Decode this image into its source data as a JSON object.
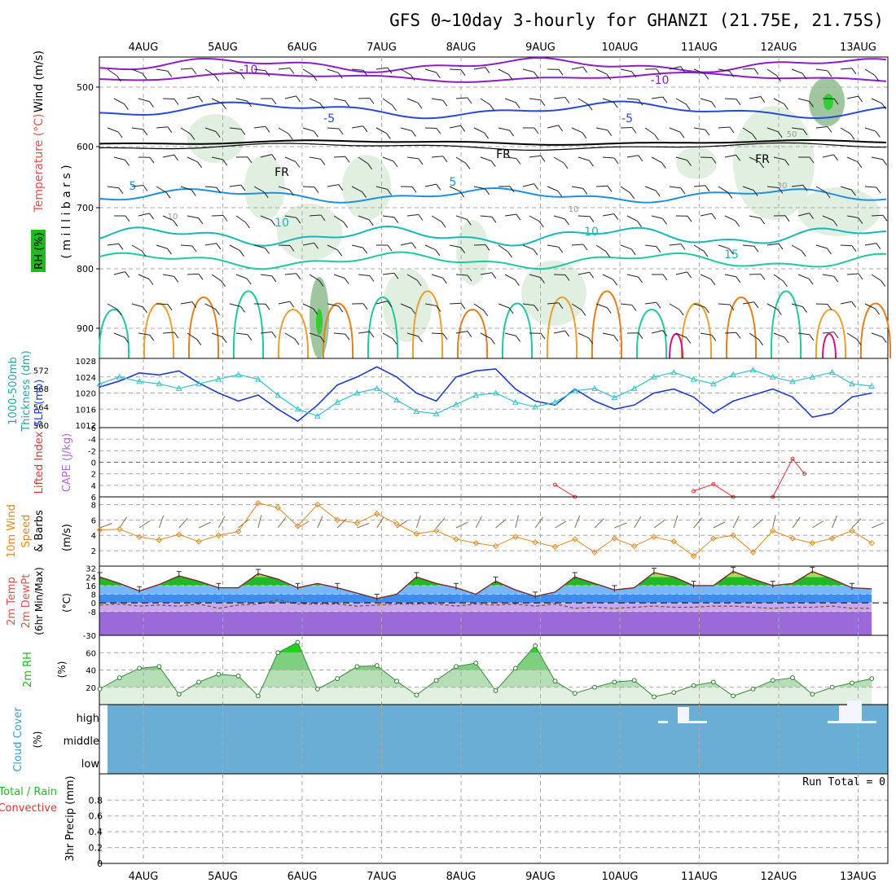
{
  "title": "GFS 0~10day 3-hourly for GHANZI (21.75E, 21.75S)",
  "dates": [
    "4AUG",
    "5AUG",
    "6AUG",
    "7AUG",
    "8AUG",
    "9AUG",
    "10AUG",
    "11AUG",
    "12AUG",
    "13AUG"
  ],
  "colors": {
    "frame": "#000000",
    "grid": "#a8a8a8",
    "slp": "#1e3cc8",
    "thickness": "#33c2c8",
    "cape": "#b866d8",
    "lifted": "#e03030",
    "wind10m": "#e08a1e",
    "barbs": "#8a6a4a",
    "rh_green": "#22b822",
    "cloud_bg": "#6aaed6",
    "cloud_fill": "#f4f4ff",
    "temp_purple": "#8d52c8",
    "temp_hot": "#f0a030",
    "frz": "#000000"
  },
  "panel_upper": {
    "label_wind": "Wind (m/s)",
    "label_temp": "Temperature (°C)",
    "label_mb": "( m i l l i b a r s )",
    "label_rh": "RH (%)",
    "yticks": [
      "500",
      "600",
      "700",
      "800",
      "900"
    ],
    "contour_labels": [
      "-10",
      "-10",
      "-5",
      "-5",
      "5",
      "5",
      "10",
      "10",
      "15",
      "10",
      "10",
      "50",
      "30",
      "FR",
      "FR",
      "FR"
    ]
  },
  "panel_slp": {
    "label_left": "1000-500mb",
    "label_left2": "Thickness (dm)",
    "label_right": "SLP (mb)",
    "yticks_left": [
      "572",
      "568",
      "564",
      "560"
    ],
    "yticks_right": [
      "1028",
      "1024",
      "1020",
      "1016",
      "1012"
    ]
  },
  "panel_cape": {
    "label_left": "Lifted Index",
    "label_right": "CAPE (J/kg)",
    "yticks": [
      "-4",
      "-2",
      "0",
      "2",
      "4",
      "6"
    ],
    "yticks_top": "-6"
  },
  "panel_wind": {
    "label_1": "10m Wind",
    "label_2": "Speed",
    "label_3": "& Barbs",
    "label_units": "(m/s)",
    "yticks": [
      "8",
      "6",
      "4",
      "2"
    ]
  },
  "panel_temp": {
    "label_1": "2m Temp",
    "label_2": "2m DewPt",
    "label_3": "(6hr Min/Max)",
    "label_units": "(°C)",
    "yticks": [
      "32",
      "24",
      "16",
      "8",
      "0",
      "-8",
      "-30"
    ]
  },
  "panel_rh": {
    "label_1": "2m RH",
    "label_units": "(%)",
    "yticks": [
      "60",
      "40",
      "20"
    ]
  },
  "panel_cloud": {
    "label_1": "Cloud Cover",
    "label_units": "(%)",
    "levels": [
      "high",
      "middle",
      "low"
    ]
  },
  "panel_precip": {
    "label_1": "Total / Rain",
    "label_2": "Convective",
    "label_3": "3hr Precip (mm)",
    "yticks": [
      "0.8",
      "0.6",
      "0.4",
      "0.2",
      "0"
    ],
    "run_total": "Run Total = 0"
  },
  "chart_data": [
    {
      "type": "line",
      "title": "SLP (mb) and 1000-500mb Thickness (dm)",
      "x_unit": "days from 3AUG 12Z (3-hourly)",
      "series": [
        {
          "name": "SLP (mb)",
          "x": [
            0,
            0.25,
            0.5,
            0.75,
            1,
            1.25,
            1.5,
            1.75,
            2,
            2.25,
            2.5,
            2.75,
            3,
            3.25,
            3.5,
            3.75,
            4,
            4.25,
            4.5,
            4.75,
            5,
            5.25,
            5.5,
            5.75,
            6,
            6.25,
            6.5,
            6.75,
            7,
            7.25,
            7.5,
            7.75,
            8,
            8.25,
            8.5,
            8.75,
            9,
            9.25,
            9.5,
            9.75
          ],
          "values": [
            1021.5,
            1023,
            1025,
            1024.5,
            1025.5,
            1022.5,
            1020,
            1018,
            1019.5,
            1016,
            1013,
            1017,
            1022,
            1024,
            1026.5,
            1024,
            1020,
            1018,
            1024,
            1025.5,
            1026,
            1021,
            1018,
            1017,
            1021,
            1018,
            1016,
            1017,
            1020,
            1021,
            1019,
            1015,
            1018,
            1019.5,
            1021,
            1019,
            1014,
            1015,
            1019,
            1020
          ]
        },
        {
          "name": "1000-500mb Thickness (dm)",
          "x": [
            0,
            0.25,
            0.5,
            0.75,
            1,
            1.25,
            1.5,
            1.75,
            2,
            2.25,
            2.5,
            2.75,
            3,
            3.25,
            3.5,
            3.75,
            4,
            4.25,
            4.5,
            4.75,
            5,
            5.25,
            5.5,
            5.75,
            6,
            6.25,
            6.5,
            6.75,
            7,
            7.25,
            7.5,
            7.75,
            8,
            8.25,
            8.5,
            8.75,
            9,
            9.25,
            9.5,
            9.75
          ],
          "values": [
            569,
            570.5,
            569.5,
            569,
            568,
            569,
            570,
            571,
            570,
            566.5,
            563.5,
            562,
            565,
            567,
            568,
            565.5,
            563,
            562.5,
            564.5,
            566.5,
            567,
            565,
            564,
            565,
            567.5,
            568,
            566,
            568,
            570.5,
            571.5,
            570,
            569,
            571,
            572,
            570.5,
            569.5,
            570.5,
            571.5,
            569,
            568.5
          ]
        }
      ],
      "ylim_slp": [
        1010,
        1028
      ],
      "ylim_thickness": [
        560,
        574
      ]
    },
    {
      "type": "line",
      "title": "Lifted Index",
      "x": [
        5.75,
        6.0,
        7.5,
        7.75,
        8.0,
        8.5,
        8.75,
        8.9
      ],
      "values": [
        3.9,
        6,
        5,
        3.8,
        6,
        6,
        -0.6,
        2
      ],
      "ylim": [
        -6,
        6
      ]
    },
    {
      "type": "line",
      "title": "10m Wind Speed (m/s)",
      "x": [
        0,
        0.25,
        0.5,
        0.75,
        1,
        1.25,
        1.5,
        1.75,
        2,
        2.25,
        2.5,
        2.75,
        3,
        3.25,
        3.5,
        3.75,
        4,
        4.25,
        4.5,
        4.75,
        5,
        5.25,
        5.5,
        5.75,
        6,
        6.25,
        6.5,
        6.75,
        7,
        7.25,
        7.5,
        7.75,
        8,
        8.25,
        8.5,
        8.75,
        9,
        9.25,
        9.5,
        9.75
      ],
      "values": [
        4.7,
        4.8,
        3.8,
        3.4,
        4.1,
        3.2,
        4.0,
        4.5,
        8.2,
        7.6,
        5.2,
        8.0,
        6.0,
        5.6,
        6.8,
        5.5,
        4.2,
        4.6,
        3.5,
        3.0,
        2.6,
        3.8,
        3.1,
        2.5,
        3.5,
        1.8,
        3.6,
        2.6,
        3.8,
        3.2,
        1.3,
        3.6,
        4.0,
        1.8,
        4.6,
        3.6,
        3.0,
        3.6,
        4.6,
        3.0
      ],
      "ylim": [
        0,
        9
      ]
    },
    {
      "type": "area",
      "title": "2m Temp (°C)",
      "x": [
        0,
        0.25,
        0.5,
        0.75,
        1,
        1.25,
        1.5,
        1.75,
        2,
        2.25,
        2.5,
        2.75,
        3,
        3.25,
        3.5,
        3.75,
        4,
        4.25,
        4.5,
        4.75,
        5,
        5.25,
        5.5,
        5.75,
        6,
        6.25,
        6.5,
        6.75,
        7,
        7.25,
        7.5,
        7.75,
        8,
        8.25,
        8.5,
        8.75,
        9,
        9.25,
        9.5,
        9.75
      ],
      "values": [
        24,
        18,
        11,
        17,
        25,
        20,
        14,
        14,
        27,
        22,
        14,
        18,
        14,
        9,
        4,
        8,
        24,
        18,
        14,
        8,
        20,
        12,
        6,
        10,
        24,
        18,
        12,
        14,
        28,
        24,
        16,
        16,
        29,
        22,
        16,
        18,
        29,
        22,
        14,
        13
      ],
      "dewpoint": [
        -2,
        -1,
        -3,
        -2,
        -3,
        -1,
        -5,
        -2,
        -1,
        3,
        -1,
        -1,
        -1,
        -3,
        -2,
        -1,
        -1,
        -1,
        -3,
        -1,
        -2,
        -1,
        -3,
        -1,
        -5,
        -4,
        -5,
        -4,
        -3,
        -4,
        -4,
        -3,
        -3,
        -4,
        -5,
        -4,
        -4,
        -3,
        -5,
        -5
      ],
      "ylim": [
        -30,
        34
      ]
    },
    {
      "type": "area",
      "title": "2m RH (%)",
      "x": [
        0,
        0.25,
        0.5,
        0.75,
        1,
        1.25,
        1.5,
        1.75,
        2,
        2.25,
        2.5,
        2.75,
        3,
        3.25,
        3.5,
        3.75,
        4,
        4.25,
        4.5,
        4.75,
        5,
        5.25,
        5.5,
        5.75,
        6,
        6.25,
        6.5,
        6.75,
        7,
        7.25,
        7.5,
        7.75,
        8,
        8.25,
        8.5,
        8.75,
        9,
        9.25,
        9.5,
        9.75
      ],
      "values": [
        18,
        31,
        42,
        44,
        12,
        26,
        35,
        33,
        10,
        60,
        72,
        18,
        30,
        44,
        45,
        27,
        11,
        28,
        44,
        48,
        16,
        42,
        68,
        27,
        13,
        20,
        26,
        28,
        9,
        14,
        22,
        26,
        10,
        18,
        28,
        31,
        12,
        20,
        25,
        30
      ],
      "ylim": [
        0,
        80
      ]
    },
    {
      "type": "table",
      "title": "Cloud Cover (%)",
      "rows": [
        "high",
        "middle",
        "low"
      ],
      "note": "High cloud near 10.5AUG and 12.7AUG; otherwise clear"
    },
    {
      "type": "bar",
      "title": "3hr Precip (mm)",
      "values": [],
      "ylim": [
        0,
        1
      ],
      "annotation": "Run Total = 0"
    }
  ]
}
